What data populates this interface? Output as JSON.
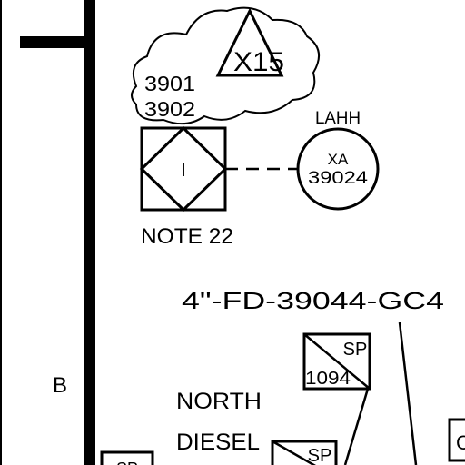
{
  "drawing": {
    "revision_cloud": {
      "revision": "X15",
      "references": [
        "3901",
        "3902"
      ]
    },
    "interlock": {
      "symbol_label": "I",
      "note": "NOTE 22"
    },
    "alarm": {
      "function": "LAHH",
      "tag_prefix": "XA",
      "tag_number": "39024"
    },
    "line_number": "4\"-FD-39044-GC4",
    "zone_marker": "B",
    "specialty_item": {
      "code": "SP",
      "number": "1094"
    },
    "area_label": [
      "NORTH",
      "DIESEL"
    ],
    "specialty_item_2": {
      "code": "SP"
    },
    "partial_labels": {
      "bottom_left": "SP",
      "right_edge": "C"
    }
  }
}
